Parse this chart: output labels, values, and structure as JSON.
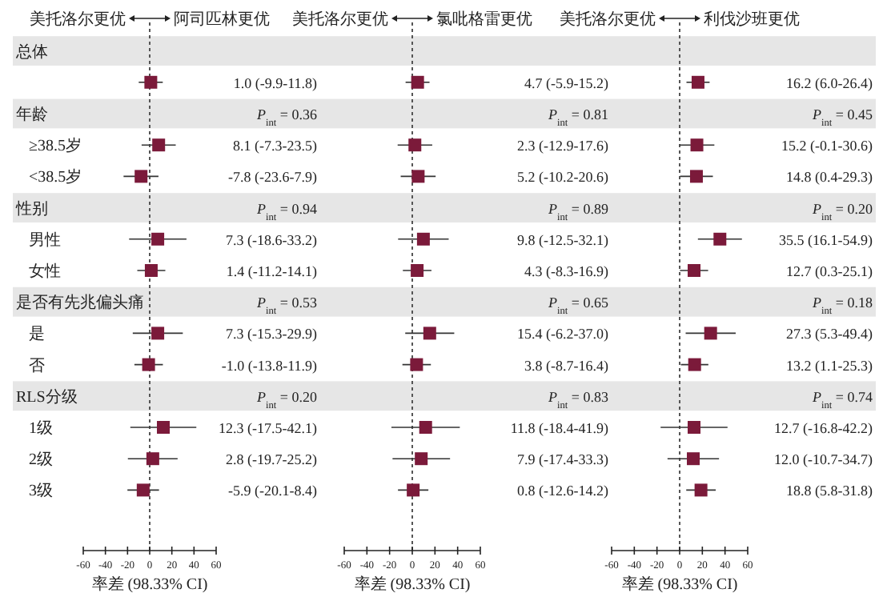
{
  "chart_data": [
    {
      "type": "scatter",
      "orientation": "horizontal",
      "color": "#7b1a3a",
      "marker": "square",
      "categories": [
        "总体",
        null,
        "年龄",
        "≥38.5岁",
        "<38.5岁",
        "性别",
        "男性",
        "女性",
        "是否有先兆偏头痛",
        "是",
        "否",
        "RLS分级",
        "1级",
        "2级",
        "3级"
      ],
      "values": [
        null,
        1.0,
        null,
        8.1,
        -7.8,
        null,
        7.3,
        1.4,
        null,
        7.3,
        -1.0,
        null,
        12.3,
        2.8,
        -5.9
      ],
      "errors": [
        null,
        [
          -9.9,
          11.8
        ],
        null,
        [
          -7.3,
          23.5
        ],
        [
          -23.6,
          7.9
        ],
        null,
        [
          -18.6,
          33.2
        ],
        [
          -11.2,
          14.1
        ],
        null,
        [
          -15.3,
          29.9
        ],
        [
          -13.8,
          11.9
        ],
        null,
        [
          -17.5,
          42.1
        ],
        [
          -19.7,
          25.2
        ],
        [
          -20.1,
          8.4
        ]
      ],
      "value_labels": [
        null,
        "1.0 (-9.9-11.8)",
        "*P*$_{int}$ = 0.36",
        "8.1 (-7.3-23.5)",
        "-7.8 (-23.6-7.9)",
        "*P*$_{int}$ = 0.94",
        "7.3 (-18.6-33.2)",
        "1.4 (-11.2-14.1)",
        "*P*$_{int}$ = 0.53",
        "7.3 (-15.3-29.9)",
        "-1.0 (-13.8-11.9)",
        "*P*$_{int}$ = 0.20",
        "12.3 (-17.5-42.1)",
        "2.8 (-19.7-25.2)",
        "-5.9 (-20.1-8.4)"
      ],
      "xlim": [
        -60,
        60
      ],
      "xticks": [
        -60,
        -40,
        -20,
        0,
        20,
        40,
        60
      ],
      "xlabel": "率差 (98.33% CI)",
      "ref_lines": [
        {
          "axis": "x",
          "value": 0,
          "line_style": "dashed"
        }
      ],
      "annotations": [
        "美托洛尔更优",
        "阿司匹林更优"
      ]
    },
    {
      "type": "scatter",
      "orientation": "horizontal",
      "color": "#7b1a3a",
      "marker": "square",
      "tick_labels": "x",
      "values": [
        null,
        4.7,
        null,
        2.3,
        5.2,
        null,
        9.8,
        4.3,
        null,
        15.4,
        3.8,
        null,
        11.8,
        7.9,
        0.8
      ],
      "errors": [
        null,
        [
          -5.9,
          15.2
        ],
        null,
        [
          -12.9,
          17.6
        ],
        [
          -10.2,
          20.6
        ],
        null,
        [
          -12.5,
          32.1
        ],
        [
          -8.3,
          16.9
        ],
        null,
        [
          -6.2,
          37.0
        ],
        [
          -8.7,
          16.4
        ],
        null,
        [
          -18.4,
          41.9
        ],
        [
          -17.4,
          33.3
        ],
        [
          -12.6,
          14.2
        ]
      ],
      "value_labels": [
        null,
        "4.7 (-5.9-15.2)",
        "*P*$_{int}$ = 0.81",
        "2.3 (-12.9-17.6)",
        "5.2 (-10.2-20.6)",
        "*P*$_{int}$ = 0.89",
        "9.8 (-12.5-32.1)",
        "4.3 (-8.3-16.9)",
        "*P*$_{int}$ = 0.65",
        "15.4 (-6.2-37.0)",
        "3.8 (-8.7-16.4)",
        "*P*$_{int}$ = 0.83",
        "11.8 (-18.4-41.9)",
        "7.9 (-17.4-33.3)",
        "0.8 (-12.6-14.2)"
      ],
      "xlim": [
        -60,
        60
      ],
      "xticks": [
        -60,
        -40,
        -20,
        0,
        20,
        40,
        60
      ],
      "xlabel": "率差 (98.33% CI)",
      "ref_lines": [
        {
          "axis": "x",
          "value": 0,
          "line_style": "dashed"
        }
      ],
      "annotations": [
        "美托洛尔更优",
        "氯吡格雷更优"
      ]
    },
    {
      "type": "scatter",
      "orientation": "horizontal",
      "color": "#7b1a3a",
      "marker": "square",
      "tick_labels": "x",
      "values": [
        null,
        16.2,
        null,
        15.2,
        14.8,
        null,
        35.5,
        12.7,
        null,
        27.3,
        13.2,
        null,
        12.7,
        12.0,
        18.8
      ],
      "errors": [
        null,
        [
          6.0,
          26.4
        ],
        null,
        [
          -0.1,
          30.6
        ],
        [
          0.4,
          29.3
        ],
        null,
        [
          16.1,
          54.9
        ],
        [
          0.3,
          25.1
        ],
        null,
        [
          5.3,
          49.4
        ],
        [
          1.1,
          25.3
        ],
        null,
        [
          -16.8,
          42.2
        ],
        [
          -10.7,
          34.7
        ],
        [
          5.8,
          31.8
        ]
      ],
      "value_labels": [
        null,
        "16.2 (6.0-26.4)",
        "*P*$_{int}$ = 0.45",
        "15.2 (-0.1-30.6)",
        "14.8 (0.4-29.3)",
        "*P*$_{int}$ = 0.20",
        "35.5 (16.1-54.9)",
        "12.7 (0.3-25.1)",
        "*P*$_{int}$ = 0.18",
        "27.3 (5.3-49.4)",
        "13.2 (1.1-25.3)",
        "*P*$_{int}$ = 0.74",
        "12.7 (-16.8-42.2)",
        "12.0 (-10.7-34.7)",
        "18.8 (5.8-31.8)"
      ],
      "xlim": [
        -60,
        60
      ],
      "xticks": [
        -60,
        -40,
        -20,
        0,
        20,
        40,
        60
      ],
      "xlabel": "率差 (98.33% CI)",
      "ref_lines": [
        {
          "axis": "x",
          "value": 0,
          "line_style": "dashed"
        }
      ],
      "annotations": [
        "美托洛尔更优",
        "利伐沙班更优"
      ]
    }
  ]
}
